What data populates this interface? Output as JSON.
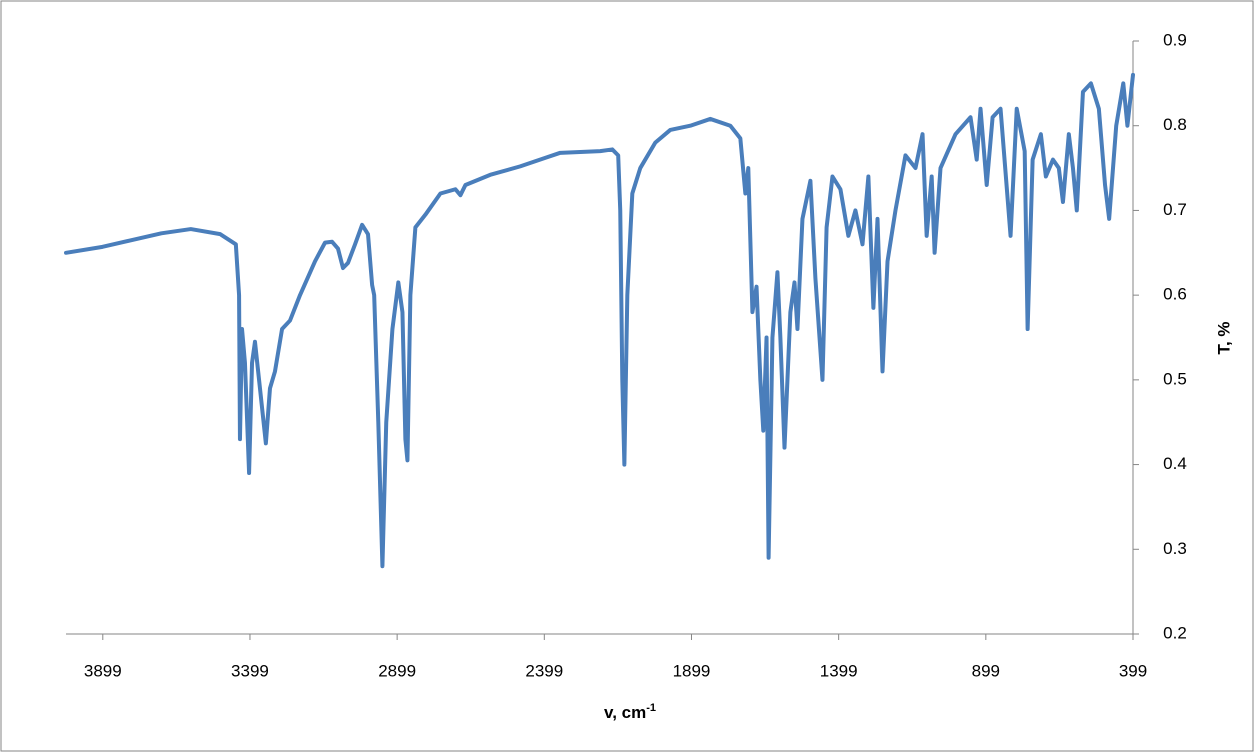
{
  "chart_data": {
    "type": "line",
    "x_label": "v, cm",
    "x_label_sup": "-1",
    "y_label": "T, %",
    "x": [
      4024,
      3900,
      3800,
      3700,
      3600,
      3500,
      3447,
      3436,
      3433,
      3426,
      3416,
      3402,
      3392,
      3382,
      3365,
      3345,
      3331,
      3314,
      3290,
      3263,
      3229,
      3178,
      3144,
      3120,
      3100,
      3083,
      3066,
      3042,
      3018,
      2998,
      2984,
      2977,
      2963,
      2949,
      2936,
      2915,
      2895,
      2881,
      2871,
      2864,
      2854,
      2837,
      2803,
      2752,
      2701,
      2684,
      2667,
      2583,
      2481,
      2396,
      2345,
      2209,
      2168,
      2148,
      2141,
      2134,
      2127,
      2117,
      2100,
      2073,
      2022,
      1971,
      1903,
      1835,
      1767,
      1733,
      1716,
      1706,
      1692,
      1678,
      1665,
      1655,
      1644,
      1637,
      1624,
      1607,
      1597,
      1583,
      1563,
      1549,
      1539,
      1522,
      1495,
      1478,
      1464,
      1454,
      1440,
      1420,
      1393,
      1366,
      1342,
      1318,
      1298,
      1281,
      1267,
      1250,
      1233,
      1206,
      1172,
      1138,
      1114,
      1100,
      1083,
      1073,
      1053,
      1002,
      951,
      930,
      917,
      896,
      876,
      849,
      815,
      794,
      767,
      757,
      740,
      712,
      695,
      671,
      651,
      637,
      617,
      603,
      590,
      569,
      542,
      515,
      494,
      480,
      456,
      432,
      418,
      399
    ],
    "series": [
      {
        "name": "T",
        "color": "#4a7ebb",
        "values": [
          0.65,
          0.657,
          0.665,
          0.673,
          0.678,
          0.672,
          0.66,
          0.6,
          0.43,
          0.56,
          0.52,
          0.39,
          0.52,
          0.545,
          0.49,
          0.425,
          0.49,
          0.51,
          0.56,
          0.57,
          0.6,
          0.64,
          0.662,
          0.663,
          0.655,
          0.632,
          0.638,
          0.66,
          0.683,
          0.672,
          0.612,
          0.6,
          0.45,
          0.28,
          0.45,
          0.56,
          0.615,
          0.58,
          0.43,
          0.405,
          0.6,
          0.68,
          0.695,
          0.72,
          0.725,
          0.718,
          0.73,
          0.742,
          0.752,
          0.762,
          0.768,
          0.77,
          0.772,
          0.765,
          0.7,
          0.5,
          0.4,
          0.6,
          0.72,
          0.75,
          0.78,
          0.795,
          0.8,
          0.808,
          0.8,
          0.785,
          0.72,
          0.75,
          0.58,
          0.61,
          0.5,
          0.44,
          0.55,
          0.29,
          0.55,
          0.627,
          0.55,
          0.42,
          0.58,
          0.615,
          0.56,
          0.69,
          0.735,
          0.62,
          0.55,
          0.5,
          0.68,
          0.74,
          0.725,
          0.67,
          0.7,
          0.66,
          0.74,
          0.585,
          0.69,
          0.51,
          0.64,
          0.7,
          0.765,
          0.75,
          0.79,
          0.67,
          0.74,
          0.65,
          0.75,
          0.79,
          0.81,
          0.76,
          0.82,
          0.73,
          0.81,
          0.82,
          0.67,
          0.82,
          0.77,
          0.56,
          0.76,
          0.79,
          0.74,
          0.76,
          0.75,
          0.71,
          0.79,
          0.75,
          0.7,
          0.84,
          0.85,
          0.82,
          0.73,
          0.69,
          0.8,
          0.85,
          0.8,
          0.86
        ]
      }
    ],
    "xlim": [
      4024,
      399
    ],
    "xticks": [
      3899,
      3399,
      2899,
      2399,
      1899,
      1399,
      899,
      399
    ],
    "ylim": [
      0.2,
      0.9
    ],
    "yticks": [
      0.2,
      0.3,
      0.4,
      0.5,
      0.6,
      0.7,
      0.8,
      0.9
    ]
  }
}
